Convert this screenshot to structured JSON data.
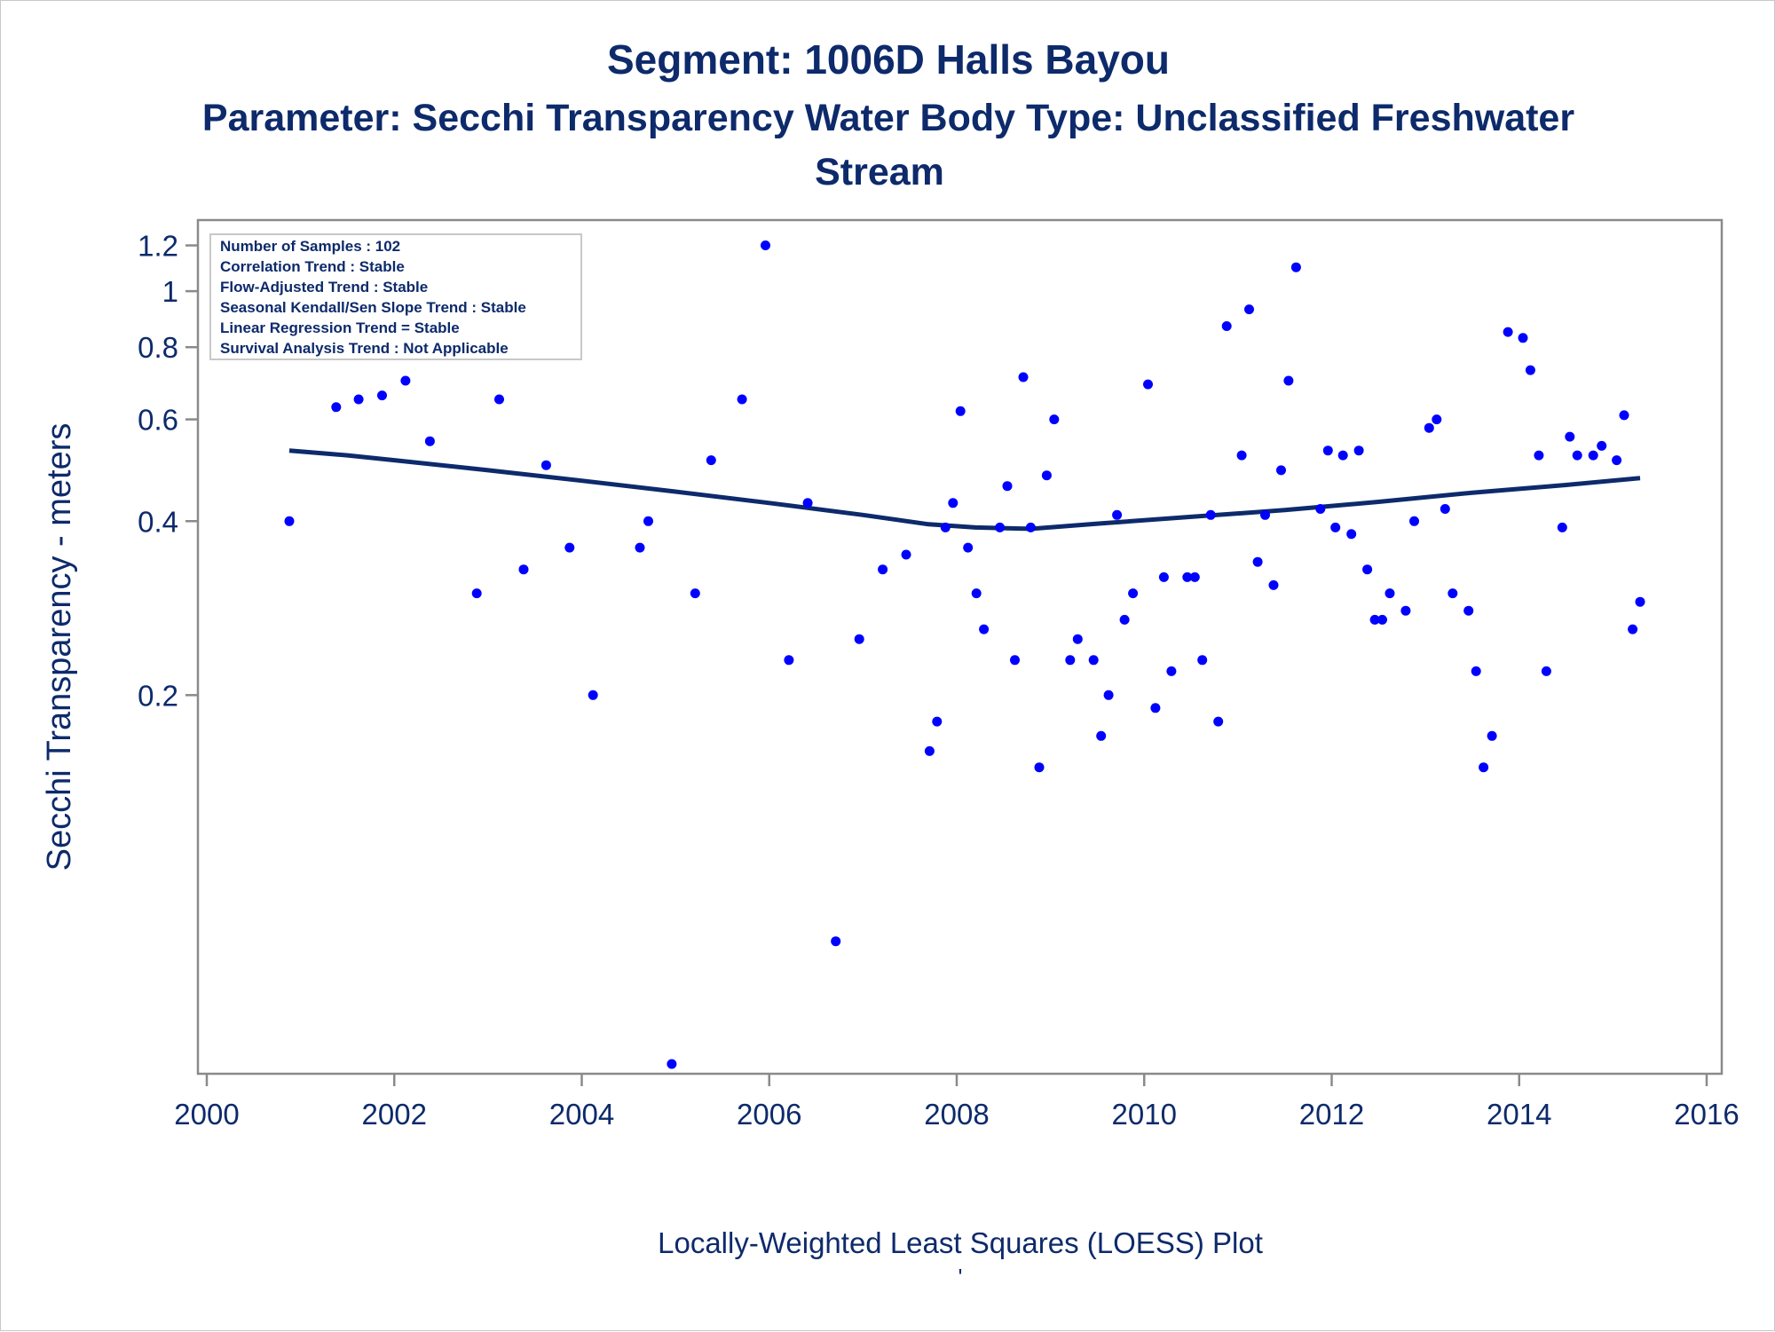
{
  "chart_data": {
    "type": "scatter",
    "title": "Segment: 1006D  Halls Bayou",
    "subtitle_lines": [
      "Parameter: Secchi Transparency   Water Body Type: Unclassified Freshwater",
      "Stream"
    ],
    "ylabel": "Secchi Transparency - meters",
    "xlabel": "Locally-Weighted Least Squares (LOESS) Plot",
    "footnote": "'",
    "y_scale": "log",
    "ylim": [
      0.046,
      1.25
    ],
    "xlim": [
      1999.9,
      2016.15
    ],
    "x_ticks": [
      2000,
      2002,
      2004,
      2006,
      2008,
      2010,
      2012,
      2014,
      2016
    ],
    "x_tick_labels": [
      "2000",
      "2002",
      "2004",
      "2006",
      "2008",
      "2010",
      "2012",
      "2014",
      "2016"
    ],
    "y_ticks": [
      0.2,
      0.4,
      0.6,
      0.8,
      1,
      1.2
    ],
    "y_tick_labels": [
      "0.2",
      "0.4",
      "0.6",
      "0.8",
      "1",
      "1.2"
    ],
    "grid": false,
    "stats_box": {
      "placement": "top-left",
      "lines": [
        "Number of Samples : 102",
        "Correlation Trend : Stable",
        "Flow-Adjusted Trend : Stable",
        "Seasonal Kendall/Sen Slope Trend : Stable",
        "Linear Regression Trend = Stable",
        "Survival Analysis Trend : Not Applicable"
      ]
    },
    "colors": {
      "points": "#0000ff",
      "loess": "#0d2a6b",
      "text": "#0d2a6b",
      "axis": "#8a8a8a"
    },
    "series": [
      {
        "type": "scatter",
        "points": [
          [
            2000.88,
            0.4
          ],
          [
            2001.38,
            0.63
          ],
          [
            2001.62,
            0.65
          ],
          [
            2001.87,
            0.66
          ],
          [
            2002.12,
            0.7
          ],
          [
            2002.38,
            0.55
          ],
          [
            2002.62,
            0.8
          ],
          [
            2002.88,
            0.3
          ],
          [
            2003.12,
            0.65
          ],
          [
            2003.38,
            0.33
          ],
          [
            2003.62,
            0.5
          ],
          [
            2003.87,
            0.36
          ],
          [
            2004.12,
            0.2
          ],
          [
            2004.62,
            0.36
          ],
          [
            2004.71,
            0.4
          ],
          [
            2004.96,
            0.046
          ],
          [
            2005.21,
            0.3
          ],
          [
            2005.38,
            0.51
          ],
          [
            2005.71,
            0.65
          ],
          [
            2005.96,
            1.2
          ],
          [
            2006.21,
            0.23
          ],
          [
            2006.41,
            0.43
          ],
          [
            2006.71,
            0.075
          ],
          [
            2006.96,
            0.25
          ],
          [
            2007.21,
            0.33
          ],
          [
            2007.46,
            0.35
          ],
          [
            2007.71,
            0.16
          ],
          [
            2007.79,
            0.18
          ],
          [
            2007.88,
            0.39
          ],
          [
            2007.96,
            0.43
          ],
          [
            2008.04,
            0.62
          ],
          [
            2008.12,
            0.36
          ],
          [
            2008.21,
            0.3
          ],
          [
            2008.29,
            0.26
          ],
          [
            2008.46,
            0.39
          ],
          [
            2008.54,
            0.46
          ],
          [
            2008.62,
            0.23
          ],
          [
            2008.71,
            0.71
          ],
          [
            2008.79,
            0.39
          ],
          [
            2008.88,
            0.15
          ],
          [
            2008.96,
            0.48
          ],
          [
            2009.04,
            0.6
          ],
          [
            2009.21,
            0.23
          ],
          [
            2009.29,
            0.25
          ],
          [
            2009.46,
            0.23
          ],
          [
            2009.54,
            0.17
          ],
          [
            2009.62,
            0.2
          ],
          [
            2009.71,
            0.41
          ],
          [
            2009.79,
            0.27
          ],
          [
            2009.88,
            0.3
          ],
          [
            2010.04,
            0.69
          ],
          [
            2010.12,
            0.19
          ],
          [
            2010.21,
            0.32
          ],
          [
            2010.29,
            0.22
          ],
          [
            2010.46,
            0.32
          ],
          [
            2010.54,
            0.32
          ],
          [
            2010.62,
            0.23
          ],
          [
            2010.71,
            0.41
          ],
          [
            2010.79,
            0.18
          ],
          [
            2010.88,
            0.87
          ],
          [
            2011.04,
            0.52
          ],
          [
            2011.12,
            0.93
          ],
          [
            2011.21,
            0.34
          ],
          [
            2011.29,
            0.41
          ],
          [
            2011.38,
            0.31
          ],
          [
            2011.46,
            0.49
          ],
          [
            2011.54,
            0.7
          ],
          [
            2011.62,
            1.1
          ],
          [
            2011.88,
            0.42
          ],
          [
            2011.96,
            0.53
          ],
          [
            2012.04,
            0.39
          ],
          [
            2012.12,
            0.52
          ],
          [
            2012.21,
            0.38
          ],
          [
            2012.29,
            0.53
          ],
          [
            2012.38,
            0.33
          ],
          [
            2012.46,
            0.27
          ],
          [
            2012.54,
            0.27
          ],
          [
            2012.62,
            0.3
          ],
          [
            2012.79,
            0.28
          ],
          [
            2012.88,
            0.4
          ],
          [
            2013.04,
            0.58
          ],
          [
            2013.12,
            0.6
          ],
          [
            2013.21,
            0.42
          ],
          [
            2013.29,
            0.3
          ],
          [
            2013.46,
            0.28
          ],
          [
            2013.54,
            0.22
          ],
          [
            2013.62,
            0.15
          ],
          [
            2013.71,
            0.17
          ],
          [
            2013.88,
            0.85
          ],
          [
            2014.04,
            0.83
          ],
          [
            2014.12,
            0.73
          ],
          [
            2014.21,
            0.52
          ],
          [
            2014.29,
            0.22
          ],
          [
            2014.46,
            0.39
          ],
          [
            2014.54,
            0.56
          ],
          [
            2014.62,
            0.52
          ],
          [
            2014.79,
            0.52
          ],
          [
            2014.88,
            0.54
          ],
          [
            2015.04,
            0.51
          ],
          [
            2015.12,
            0.61
          ],
          [
            2015.21,
            0.26
          ],
          [
            2015.29,
            0.29
          ]
        ]
      },
      {
        "type": "line",
        "points": [
          [
            2000.88,
            0.53
          ],
          [
            2001.5,
            0.52
          ],
          [
            2002.0,
            0.51
          ],
          [
            2003.0,
            0.49
          ],
          [
            2004.0,
            0.47
          ],
          [
            2005.0,
            0.45
          ],
          [
            2006.0,
            0.43
          ],
          [
            2007.0,
            0.41
          ],
          [
            2007.7,
            0.395
          ],
          [
            2008.2,
            0.39
          ],
          [
            2008.8,
            0.388
          ],
          [
            2009.5,
            0.396
          ],
          [
            2010.5,
            0.407
          ],
          [
            2011.5,
            0.418
          ],
          [
            2012.5,
            0.432
          ],
          [
            2013.5,
            0.448
          ],
          [
            2014.5,
            0.462
          ],
          [
            2015.29,
            0.475
          ]
        ]
      }
    ]
  }
}
